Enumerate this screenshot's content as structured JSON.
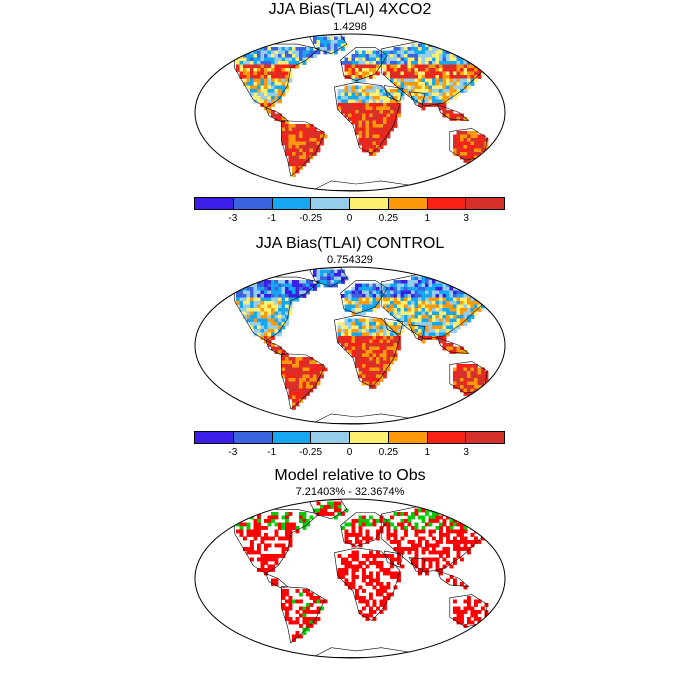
{
  "panels": [
    {
      "title": "JJA Bias(TLAI) 4XCO2",
      "subtitle": "1.4298",
      "variant": "bias_co2"
    },
    {
      "title": "JJA Bias(TLAI) CONTROL",
      "subtitle": "0.754329",
      "variant": "bias_control"
    },
    {
      "title": "Model relative to Obs",
      "subtitle": "7.21403% - 32.3674%",
      "variant": "relative"
    }
  ],
  "colorbar": {
    "colors": [
      "#3b1fe8",
      "#3a63e0",
      "#15a8f0",
      "#96cdeb",
      "#fdf071",
      "#fd9a0b",
      "#fb2015",
      "#d7302a"
    ],
    "labels": [
      "-3",
      "-1",
      "-0.25",
      "0",
      "0.25",
      "1",
      "3"
    ]
  },
  "relative_colors": {
    "positive": "#ff0000",
    "negative": "#00cc00",
    "neutral": "#ffffff"
  },
  "projection": "robinson"
}
